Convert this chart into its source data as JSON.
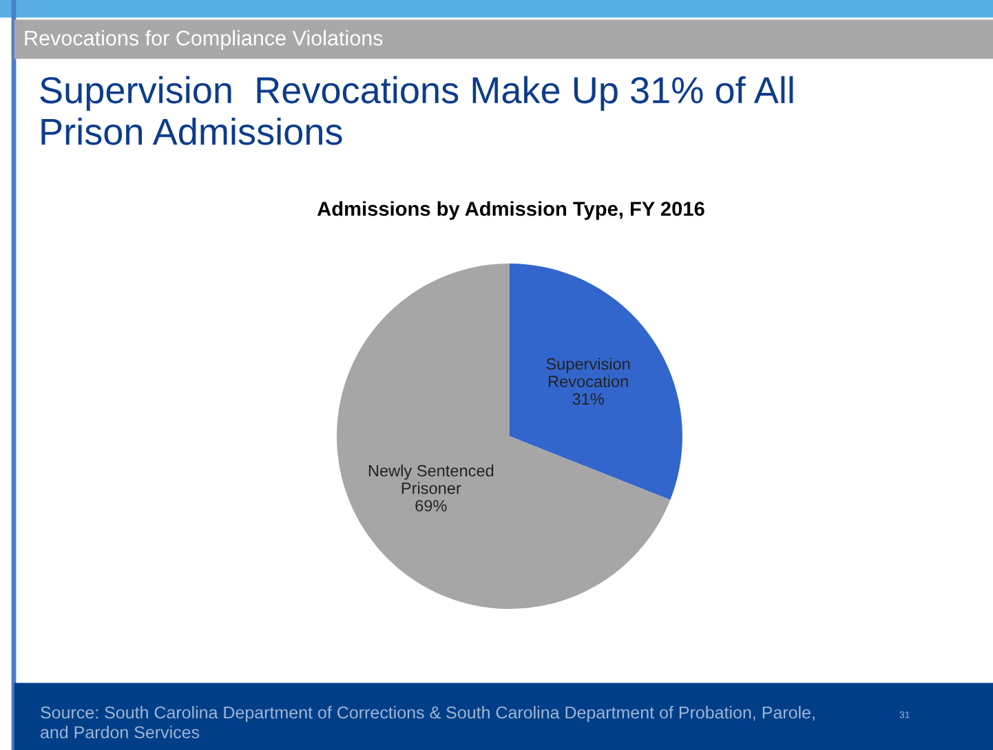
{
  "chart_data": {
    "type": "pie",
    "title": "Supervision  Revocations Make Up 31% of All\nPrison Admissions",
    "subtitle": "Admissions by Admission Type, FY 2016",
    "categories": [
      "Supervision\nRevocation",
      "Newly Sentenced\nPrisoner"
    ],
    "values": [
      31,
      69
    ],
    "colors": [
      "#3366cc",
      "#a6a6a6"
    ],
    "value_labels": [
      "31%",
      "69%"
    ],
    "legend": false,
    "annotations": [
      "Revocations for Compliance Violations",
      "Source: South Carolina Department of Corrections & South Carolina Department of Probation, Parole,\nand Pardon Services",
      "31"
    ]
  }
}
